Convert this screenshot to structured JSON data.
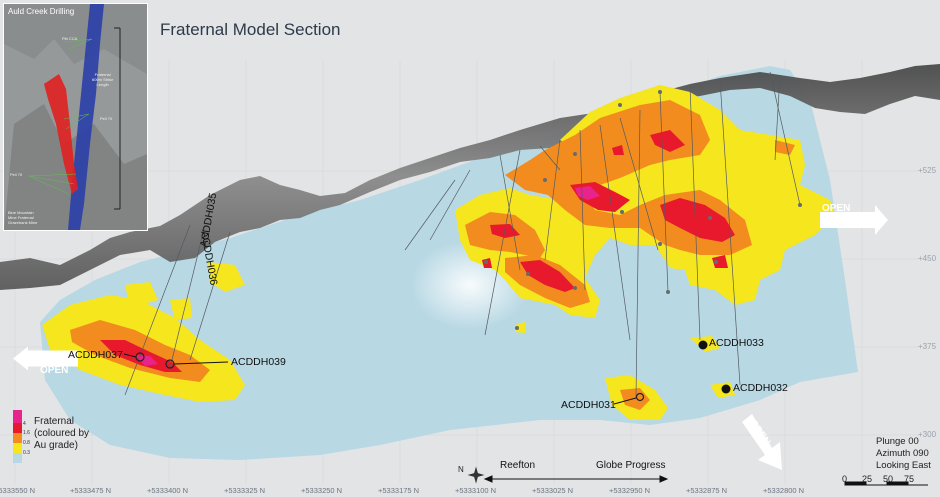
{
  "title": "Fraternal Model Section",
  "inset": {
    "title": "Auld Creek Drilling",
    "labels": [
      "Pitt CCA",
      "Fraternal\n600m Strike\nLength",
      "Pell 70",
      "Pell 70",
      "Blue Mountain\nMine Fraternal\nGrazebank Mine"
    ]
  },
  "drillholes": [
    "ACDDH037",
    "ACDDH039",
    "ACDDH035",
    "ACDDH036",
    "ACDDH033",
    "ACDDH032",
    "ACDDH031"
  ],
  "open_labels": [
    "OPEN",
    "OPEN",
    "OPEN"
  ],
  "elevations": [
    "+525",
    "+450",
    "+375",
    "+300"
  ],
  "northings": [
    "+5333550 N",
    "+5333475 N",
    "+5333400 N",
    "+5333325 N",
    "+5333250 N",
    "+5333175 N",
    "+5333100 N",
    "+5333025 N",
    "+5332950 N",
    "+5332875 N",
    "+5332800 N"
  ],
  "legend": {
    "title": "Fraternal\n(coloured by\nAu grade)",
    "values": [
      "4",
      "1.6",
      "0.8",
      "0.3"
    ],
    "colors": [
      "#e8238c",
      "#e8192c",
      "#f28c1e",
      "#f5e61e",
      "#b8d8e4"
    ]
  },
  "view": {
    "plunge": "Plunge 00",
    "azimuth": "Azimuth 090",
    "looking": "Looking East"
  },
  "scale_bar": [
    "0",
    "25",
    "50",
    "75"
  ],
  "directions": {
    "left": "Reefton",
    "right": "Globe Progress",
    "compass": "N"
  }
}
